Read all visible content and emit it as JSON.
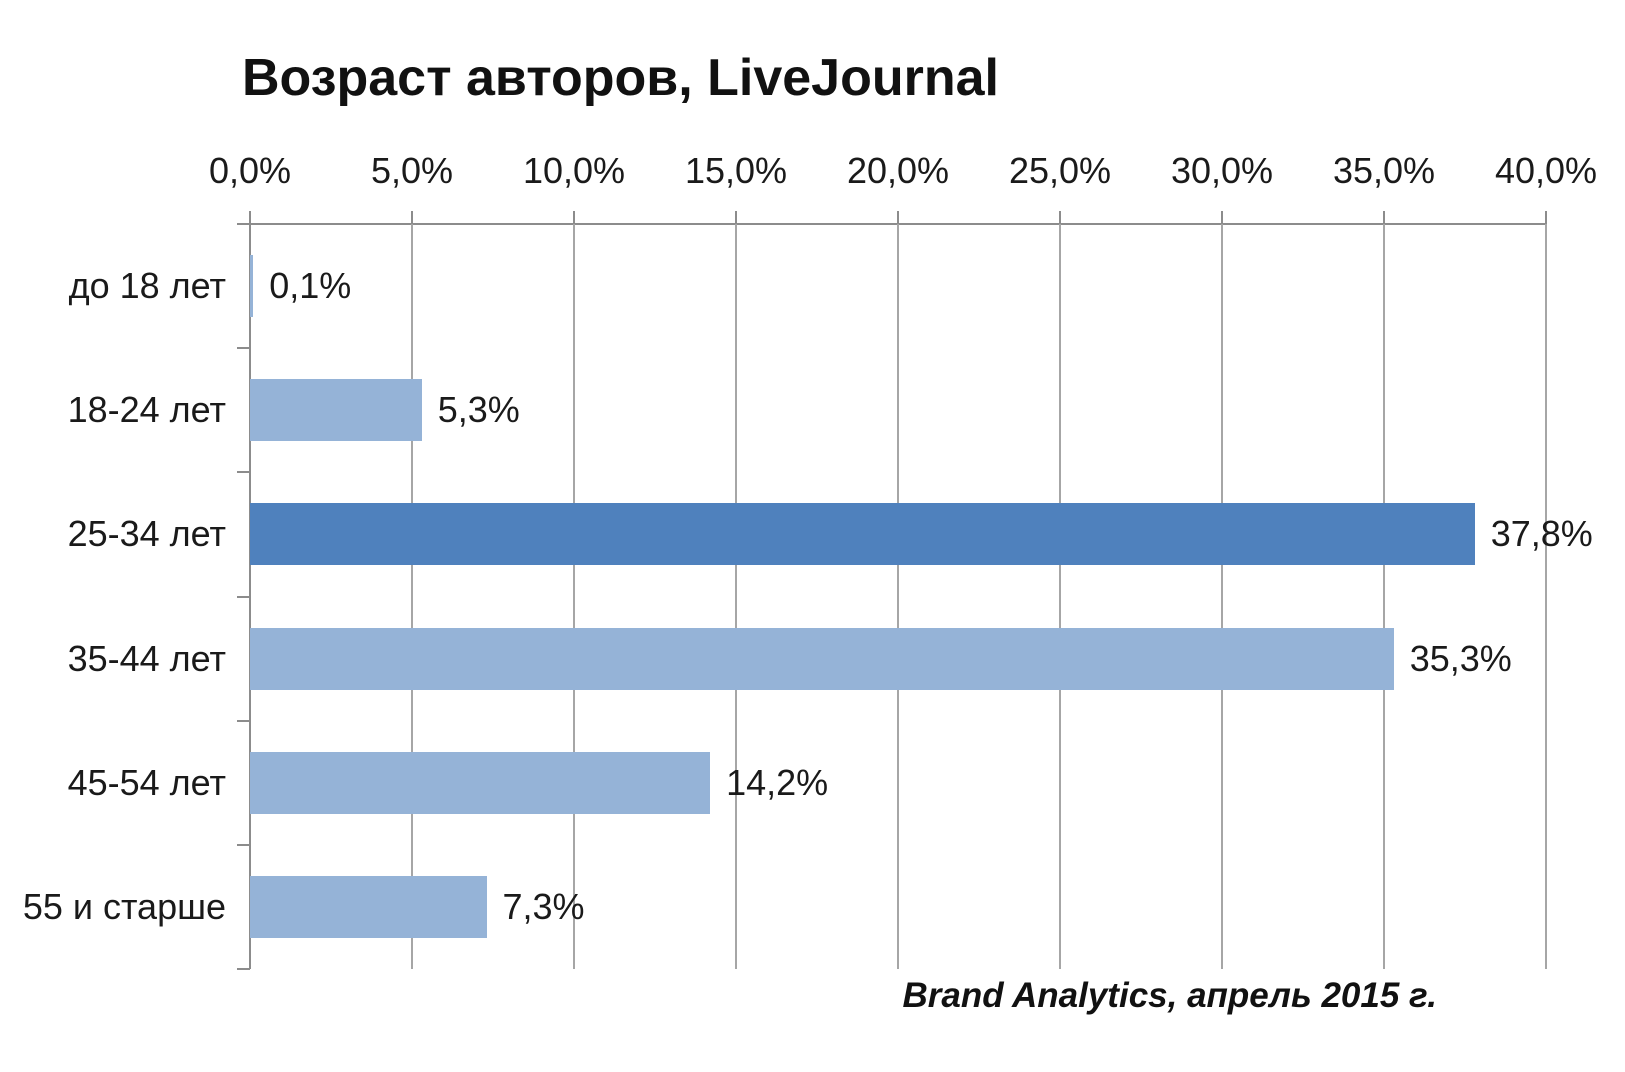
{
  "title": "Возраст авторов, LiveJournal",
  "footer_credit": "Brand Analytics, апрель 2015 г.",
  "colors": {
    "bar_light": "#95b3d7",
    "bar_highlight": "#4f81bd",
    "gridline": "#a6a6a6",
    "axis_line": "#8c8c8c",
    "text": "#1a1a1a"
  },
  "chart_data": {
    "type": "bar",
    "orientation": "horizontal",
    "title": "Возраст авторов, LiveJournal",
    "categories": [
      "до 18 лет",
      "18-24 лет",
      "25-34 лет",
      "35-44 лет",
      "45-54 лет",
      "55 и старше"
    ],
    "values": [
      0.1,
      5.3,
      37.8,
      35.3,
      14.2,
      7.3
    ],
    "value_labels": [
      "0,1%",
      "5,3%",
      "37,8%",
      "35,3%",
      "14,2%",
      "7,3%"
    ],
    "highlight_index": 2,
    "xlim": [
      0,
      40
    ],
    "x_tick_step": 5,
    "x_tick_labels": [
      "0,0%",
      "5,0%",
      "10,0%",
      "15,0%",
      "20,0%",
      "25,0%",
      "30,0%",
      "35,0%",
      "40,0%"
    ],
    "axis_position": "top",
    "grid": true,
    "legend": false
  }
}
